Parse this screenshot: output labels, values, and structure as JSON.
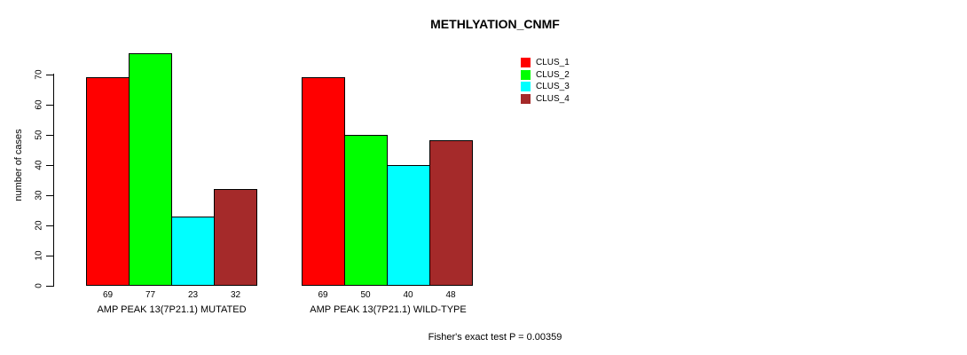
{
  "title": "METHLYATION_CNMF",
  "footer": {
    "note": "Fisher's exact test P = 0.00359"
  },
  "chart_data": {
    "type": "bar",
    "title": "METHLYATION_CNMF",
    "ylabel": "number of cases",
    "xlabel": "",
    "categories": [
      "AMP PEAK 13(7P21.1) MUTATED",
      "AMP PEAK 13(7P21.1) WILD-TYPE"
    ],
    "series": [
      {
        "name": "CLUS_1",
        "color": "#ff0000",
        "values": [
          69,
          69
        ]
      },
      {
        "name": "CLUS_2",
        "color": "#00ff00",
        "values": [
          77,
          50
        ]
      },
      {
        "name": "CLUS_3",
        "color": "#00ffff",
        "values": [
          23,
          40
        ]
      },
      {
        "name": "CLUS_4",
        "color": "#a52a2a",
        "values": [
          32,
          48
        ]
      }
    ],
    "bar_value_labels": [
      [
        69,
        77,
        23,
        32
      ],
      [
        69,
        50,
        40,
        48
      ]
    ],
    "yticks": [
      0,
      10,
      20,
      30,
      40,
      50,
      60,
      70
    ],
    "ylim": [
      0,
      77
    ],
    "grid": false,
    "legend_position": "top-right",
    "annotation": "Fisher's exact test P = 0.00359"
  }
}
